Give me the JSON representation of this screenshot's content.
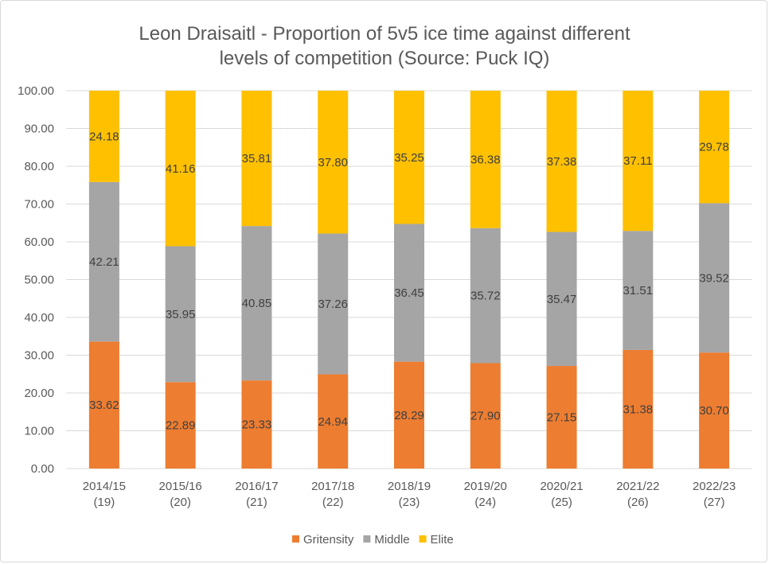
{
  "chart_data": {
    "type": "bar",
    "stacked": true,
    "title": [
      "Leon Draisaitl - Proportion of 5v5 ice time against different",
      "levels of competition (Source: Puck IQ)"
    ],
    "xlabel": "",
    "ylabel": "",
    "ylim": [
      0,
      100
    ],
    "yticks": [
      "0.00",
      "10.00",
      "20.00",
      "30.00",
      "40.00",
      "50.00",
      "60.00",
      "70.00",
      "80.00",
      "90.00",
      "100.00"
    ],
    "grid": true,
    "legend_position": "bottom",
    "categories": [
      [
        "2014/15",
        "(19)"
      ],
      [
        "2015/16",
        "(20)"
      ],
      [
        "2016/17",
        "(21)"
      ],
      [
        "2017/18",
        "(22)"
      ],
      [
        "2018/19",
        "(23)"
      ],
      [
        "2019/20",
        "(24)"
      ],
      [
        "2020/21",
        "(25)"
      ],
      [
        "2021/22",
        "(26)"
      ],
      [
        "2022/23",
        "(27)"
      ]
    ],
    "series": [
      {
        "name": "Gritensity",
        "color": "#ED7D31",
        "values": [
          33.62,
          22.89,
          23.33,
          24.94,
          28.29,
          27.9,
          27.15,
          31.38,
          30.7
        ]
      },
      {
        "name": "Middle",
        "color": "#A5A5A5",
        "values": [
          42.21,
          35.95,
          40.85,
          37.26,
          36.45,
          35.72,
          35.47,
          31.51,
          39.52
        ]
      },
      {
        "name": "Elite",
        "color": "#FFC000",
        "values": [
          24.18,
          41.16,
          35.81,
          37.8,
          35.25,
          36.38,
          37.38,
          37.11,
          29.78
        ]
      }
    ]
  }
}
